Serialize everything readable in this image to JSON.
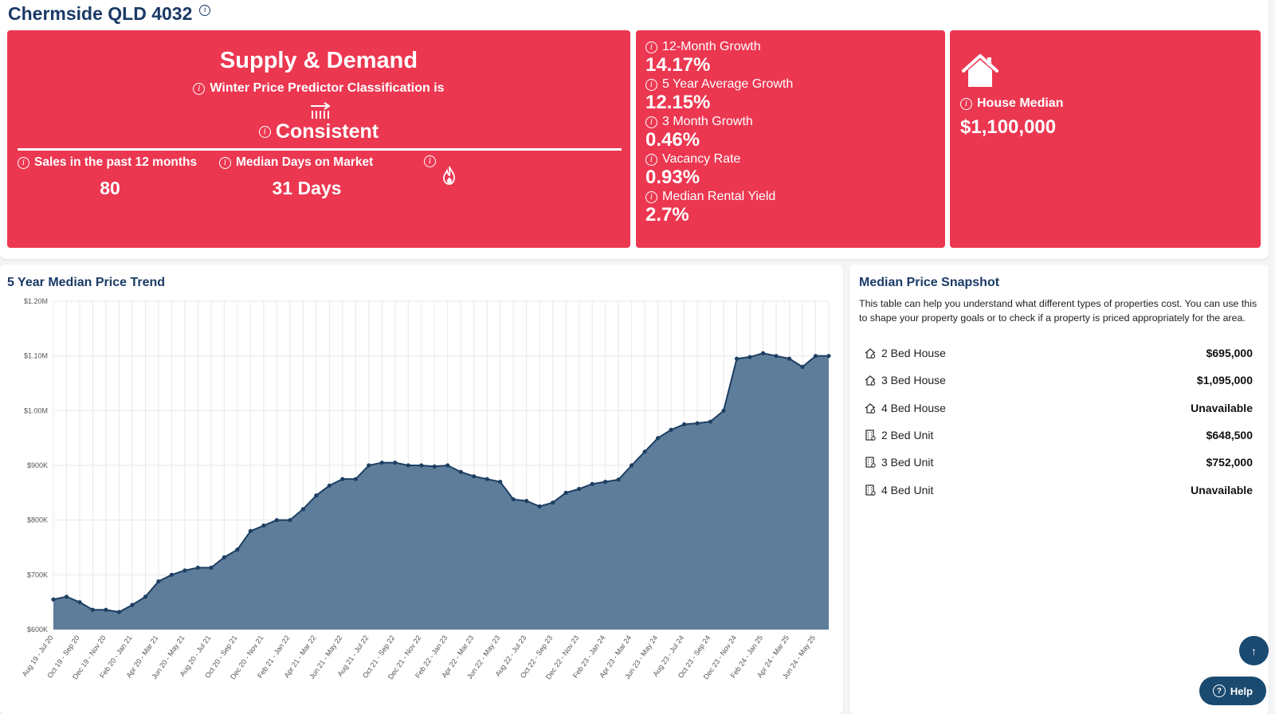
{
  "header": {
    "title": "Chermside QLD 4032",
    "info_icon": "info-icon"
  },
  "supply_demand": {
    "title": "Supply & Demand",
    "subtitle": "Winter Price Predictor Classification is",
    "trend_icon": "trend-right-arrow-icon",
    "classification": "Consistent",
    "sales_label": "Sales in the past 12 months",
    "sales_value": "80",
    "dom_label": "Median Days on Market",
    "dom_value": "31 Days",
    "heat_icon": "fire-icon"
  },
  "growth": [
    {
      "label": "12-Month Growth",
      "value": "14.17%"
    },
    {
      "label": "5 Year Average Growth",
      "value": "12.15%"
    },
    {
      "label": "3 Month Growth",
      "value": "0.46%"
    },
    {
      "label": "Vacancy Rate",
      "value": "0.93%"
    },
    {
      "label": "Median Rental Yield",
      "value": "2.7%"
    }
  ],
  "house_median": {
    "icon": "house-icon",
    "label": "House Median",
    "value": "$1,100,000"
  },
  "trend_chart": {
    "title": "5 Year Median Price Trend"
  },
  "chart_data": {
    "type": "area",
    "title": "5 Year Median Price Trend",
    "xlabel": "",
    "ylabel": "",
    "ylim": [
      600000,
      1200000
    ],
    "yticks": [
      {
        "value": 600000,
        "label": "$600K"
      },
      {
        "value": 700000,
        "label": "$700K"
      },
      {
        "value": 800000,
        "label": "$800K"
      },
      {
        "value": 900000,
        "label": "$900K"
      },
      {
        "value": 1000000,
        "label": "$1.00M"
      },
      {
        "value": 1100000,
        "label": "$1.10M"
      },
      {
        "value": 1200000,
        "label": "$1.20M"
      }
    ],
    "grid": true,
    "color": "#5e7d9a",
    "line_color": "#1d3f63",
    "categories": [
      "Aug 19 - Jul 20",
      "",
      "Oct 19 - Sep 20",
      "",
      "Dec 19 - Nov 20",
      "",
      "Feb 20 - Jan 21",
      "",
      "Apr 20 - Mar 21",
      "",
      "Jun 20 - May 21",
      "",
      "Aug 20 - Jul 21",
      "",
      "Oct 20 - Sep 21",
      "",
      "Dec 20 - Nov 21",
      "",
      "Feb 21 - Jan 22",
      "",
      "Apr 21 - Mar 22",
      "",
      "Jun 21 - May 22",
      "",
      "Aug 21 - Jul 22",
      "",
      "Oct 21 - Sep 22",
      "",
      "Dec 21 - Nov 22",
      "",
      "Feb 22 - Jan 23",
      "",
      "Apr 22 - Mar 23",
      "",
      "Jun 22 - May 23",
      "",
      "Aug 22 - Jul 23",
      "",
      "Oct 22 - Sep 23",
      "",
      "Dec 22 - Nov 23",
      "",
      "Feb 23 - Jan 24",
      "",
      "Apr 23 - Mar 24",
      "",
      "Jun 23 - May 24",
      "",
      "Aug 23 - Jul 24",
      "",
      "Oct 23 - Sep 24",
      "",
      "Dec 23 - Nov 24",
      "",
      "Feb 24 - Jan 25",
      "",
      "Apr 24 - Mar 25",
      "",
      "Jun 24 - May 25",
      ""
    ],
    "values": [
      655000,
      660000,
      650000,
      636000,
      636000,
      632000,
      645000,
      660000,
      688000,
      700000,
      708000,
      713000,
      713000,
      732000,
      746000,
      780000,
      790000,
      800000,
      800000,
      820000,
      845000,
      863000,
      875000,
      875000,
      900000,
      905000,
      905000,
      900000,
      900000,
      898000,
      900000,
      888000,
      880000,
      875000,
      870000,
      838000,
      835000,
      825000,
      832000,
      850000,
      857000,
      866000,
      870000,
      874000,
      900000,
      925000,
      950000,
      965000,
      975000,
      977000,
      980000,
      1000000,
      1095000,
      1098000,
      1105000,
      1100000,
      1095000,
      1080000,
      1100000,
      1100000
    ]
  },
  "snapshot": {
    "title": "Median Price Snapshot",
    "description": "This table can help you understand what different types of properties cost. You can use this to shape your property goals or to check if a property is priced appropriately for the area.",
    "rows": [
      {
        "icon": "house-icon",
        "name": "2 Bed House",
        "price": "$695,000"
      },
      {
        "icon": "house-icon",
        "name": "3 Bed House",
        "price": "$1,095,000"
      },
      {
        "icon": "house-icon",
        "name": "4 Bed House",
        "price": "Unavailable"
      },
      {
        "icon": "building-icon",
        "name": "2 Bed Unit",
        "price": "$648,500"
      },
      {
        "icon": "building-icon",
        "name": "3 Bed Unit",
        "price": "$752,000"
      },
      {
        "icon": "building-icon",
        "name": "4 Bed Unit",
        "price": "Unavailable"
      }
    ]
  },
  "floating": {
    "scroll_top_icon": "arrow-up-icon",
    "help_label": "Help",
    "help_icon": "question-icon"
  }
}
